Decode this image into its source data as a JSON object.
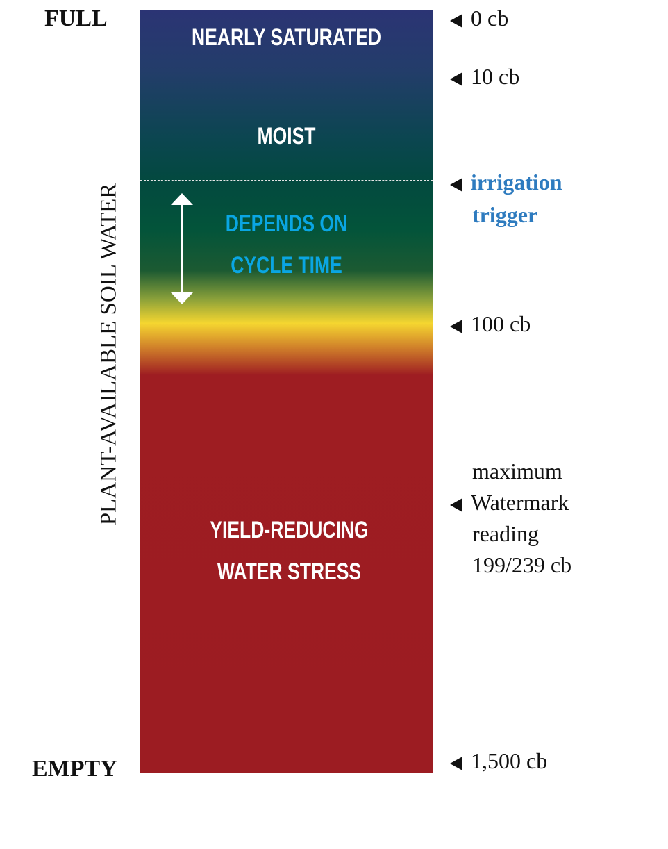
{
  "left_labels": {
    "top": "FULL",
    "bottom": "EMPTY"
  },
  "axis_title": "PLANT-AVAILABLE SOIL WATER",
  "zones": {
    "nearly_saturated": "NEARLY SATURATED",
    "moist": "MOIST",
    "depends_line1": "DEPENDS ON",
    "depends_line2": "CYCLE TIME",
    "stress_line1": "YIELD-REDUCING",
    "stress_line2": "WATER STRESS"
  },
  "markers": {
    "m0": "0 cb",
    "m10": "10 cb",
    "trigger_line1": "irrigation",
    "trigger_line2": "trigger",
    "m100": "100 cb",
    "max_line1": "maximum",
    "max_line2": "Watermark",
    "max_line3": "reading",
    "max_line4": "199/239 cb",
    "m1500": "1,500 cb"
  },
  "colors": {
    "top": "#2b3474",
    "moist": "#03493f",
    "yellow": "#f5d630",
    "red": "#9c1c22",
    "trigger": "#2e7bbf",
    "cycle": "#0aa6e3"
  }
}
